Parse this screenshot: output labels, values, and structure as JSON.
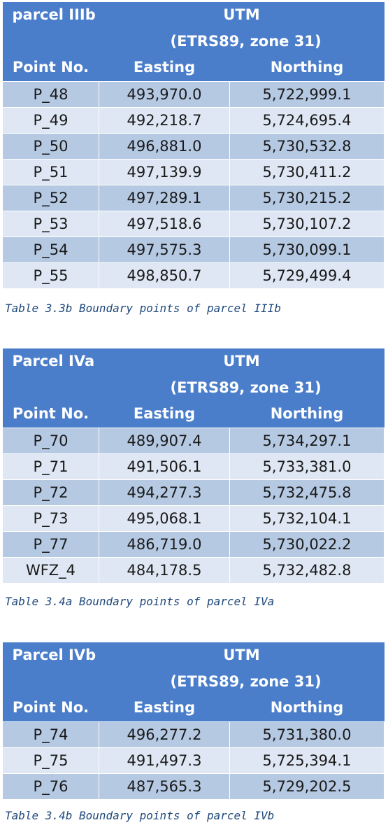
{
  "tables": [
    {
      "name": "parcel IIIb",
      "utm": "UTM",
      "datum": "(ETRS89, zone 31)",
      "headers": [
        "Point No.",
        "Easting",
        "Northing"
      ],
      "rows": [
        [
          "P_48",
          "493,970.0",
          "5,722,999.1"
        ],
        [
          "P_49",
          "492,218.7",
          "5,724,695.4"
        ],
        [
          "P_50",
          "496,881.0",
          "5,730,532.8"
        ],
        [
          "P_51",
          "497,139.9",
          "5,730,411.2"
        ],
        [
          "P_52",
          "497,289.1",
          "5,730,215.2"
        ],
        [
          "P_53",
          "497,518.6",
          "5,730,107.2"
        ],
        [
          "P_54",
          "497,575.3",
          "5,730,099.1"
        ],
        [
          "P_55",
          "498,850.7",
          "5,729,499.4"
        ]
      ],
      "caption": "Table 3.3b Boundary points of parcel IIIb"
    },
    {
      "name": "Parcel IVa",
      "utm": "UTM",
      "datum": "(ETRS89, zone 31)",
      "headers": [
        "Point No.",
        "Easting",
        "Northing"
      ],
      "rows": [
        [
          "P_70",
          "489,907.4",
          "5,734,297.1"
        ],
        [
          "P_71",
          "491,506.1",
          "5,733,381.0"
        ],
        [
          "P_72",
          "494,277.3",
          "5,732,475.8"
        ],
        [
          "P_73",
          "495,068.1",
          "5,732,104.1"
        ],
        [
          "P_77",
          "486,719.0",
          "5,730,022.2"
        ],
        [
          "WFZ_4",
          "484,178.5",
          "5,732,482.8"
        ]
      ],
      "caption": "Table 3.4a Boundary points of parcel IVa"
    },
    {
      "name": "Parcel IVb",
      "utm": "UTM",
      "datum": "(ETRS89, zone 31)",
      "headers": [
        "Point No.",
        "Easting",
        "Northing"
      ],
      "rows": [
        [
          "P_74",
          "496,277.2",
          "5,731,380.0"
        ],
        [
          "P_75",
          "491,497.3",
          "5,725,394.1"
        ],
        [
          "P_76",
          "487,565.3",
          "5,729,202.5"
        ]
      ],
      "caption": "Table 3.4b Boundary points of parcel IVb"
    }
  ]
}
